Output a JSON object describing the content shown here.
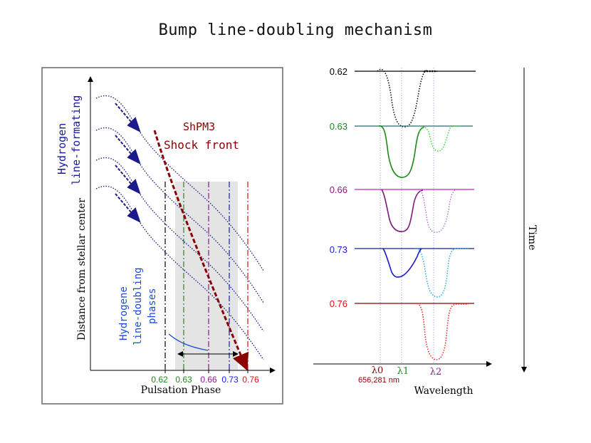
{
  "title": "Bump line-doubling mechanism",
  "left_panel": {
    "y_axis_label": "Distance from stellar center",
    "x_axis_label": "Pulsation Phase",
    "hydrogen_label_1": "Hydrogen",
    "hydrogen_label_2": "line-formating",
    "shock_label_1": "ShPM3",
    "shock_label_2": "Shock front",
    "doubling_label_1": "Hydrogene",
    "doubling_label_2": "line-doubling",
    "doubling_label_3": "phases",
    "phases": [
      {
        "label": "0.62",
        "color": "#000000"
      },
      {
        "label": "0.63",
        "color": "#1a8a1a"
      },
      {
        "label": "0.66",
        "color": "#8a1a8a"
      },
      {
        "label": "0.73",
        "color": "#1a1acc"
      },
      {
        "label": "0.76",
        "color": "#dd1111"
      }
    ]
  },
  "right_panel": {
    "time_label": "Time",
    "x_axis_label": "Wavelength",
    "lambda0": "λ0",
    "lambda0_value": "656,281 nm",
    "lambda1": "λ1",
    "lambda2": "λ2",
    "profiles": [
      {
        "phase": "0.62",
        "color": "#000000",
        "secondary_color": "#000000"
      },
      {
        "phase": "0.63",
        "color": "#1a8a1a",
        "secondary_color": "#33dd33"
      },
      {
        "phase": "0.66",
        "color": "#7a1a7a",
        "secondary_color": "#aa66cc"
      },
      {
        "phase": "0.73",
        "color": "#1a1acc",
        "secondary_color": "#22aadd"
      },
      {
        "phase": "0.76",
        "color": "#8b0000",
        "secondary_color": "#ee2222"
      }
    ]
  },
  "colors": {
    "shock_front": "#8b0000",
    "curve_blue": "#1a1a8a",
    "highlight_band": "#e4e4e4"
  }
}
